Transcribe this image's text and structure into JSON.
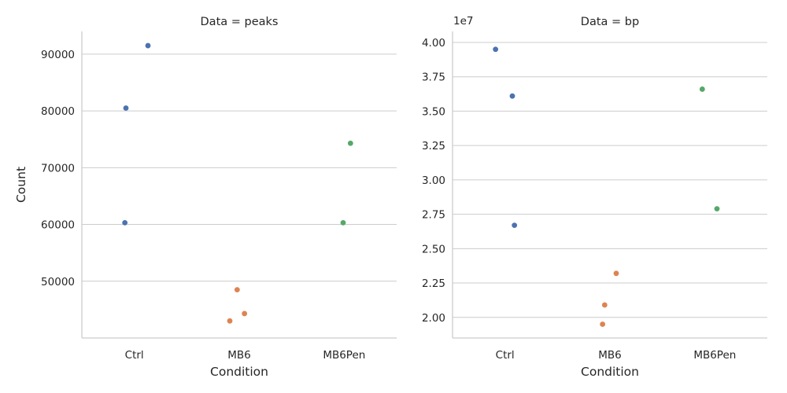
{
  "chart_data": {
    "type": "scatter",
    "figure": {
      "xlabel": "Condition",
      "ylabel": "Count"
    },
    "colors": {
      "Ctrl": "#4c72b0",
      "MB6": "#dd8452",
      "MB6Pen": "#55a868"
    },
    "panels": [
      {
        "title": "Data = peaks",
        "xlabel": "Condition",
        "ylabel": "Count",
        "categories": [
          "Ctrl",
          "MB6",
          "MB6Pen"
        ],
        "ylim": [
          40000,
          94000
        ],
        "yticks": [
          50000,
          60000,
          70000,
          80000,
          90000
        ],
        "ytick_labels": [
          "50000",
          "60000",
          "70000",
          "80000",
          "90000"
        ],
        "offset_label": "",
        "points": [
          {
            "category": "Ctrl",
            "jitter": 0.13,
            "value": 91500
          },
          {
            "category": "Ctrl",
            "jitter": -0.08,
            "value": 80500
          },
          {
            "category": "Ctrl",
            "jitter": -0.09,
            "value": 60300
          },
          {
            "category": "MB6",
            "jitter": -0.02,
            "value": 48500
          },
          {
            "category": "MB6",
            "jitter": 0.05,
            "value": 44300
          },
          {
            "category": "MB6",
            "jitter": -0.09,
            "value": 43000
          },
          {
            "category": "MB6Pen",
            "jitter": 0.06,
            "value": 74300
          },
          {
            "category": "MB6Pen",
            "jitter": -0.01,
            "value": 60300
          }
        ]
      },
      {
        "title": "Data = bp",
        "xlabel": "Condition",
        "ylabel": "",
        "categories": [
          "Ctrl",
          "MB6",
          "MB6Pen"
        ],
        "ylim": [
          18500000,
          40800000
        ],
        "yticks": [
          20000000,
          22500000,
          25000000,
          27500000,
          30000000,
          32500000,
          35000000,
          37500000,
          40000000
        ],
        "ytick_labels": [
          "2.00",
          "2.25",
          "2.50",
          "2.75",
          "3.00",
          "3.25",
          "3.50",
          "3.75",
          "4.00"
        ],
        "offset_label": "1e7",
        "points": [
          {
            "category": "Ctrl",
            "jitter": -0.09,
            "value": 39500000
          },
          {
            "category": "Ctrl",
            "jitter": 0.07,
            "value": 36100000
          },
          {
            "category": "Ctrl",
            "jitter": 0.09,
            "value": 26700000
          },
          {
            "category": "MB6",
            "jitter": 0.06,
            "value": 23200000
          },
          {
            "category": "MB6",
            "jitter": -0.05,
            "value": 20900000
          },
          {
            "category": "MB6",
            "jitter": -0.07,
            "value": 19500000
          },
          {
            "category": "MB6Pen",
            "jitter": -0.12,
            "value": 36600000
          },
          {
            "category": "MB6Pen",
            "jitter": 0.02,
            "value": 27900000
          }
        ]
      }
    ]
  }
}
